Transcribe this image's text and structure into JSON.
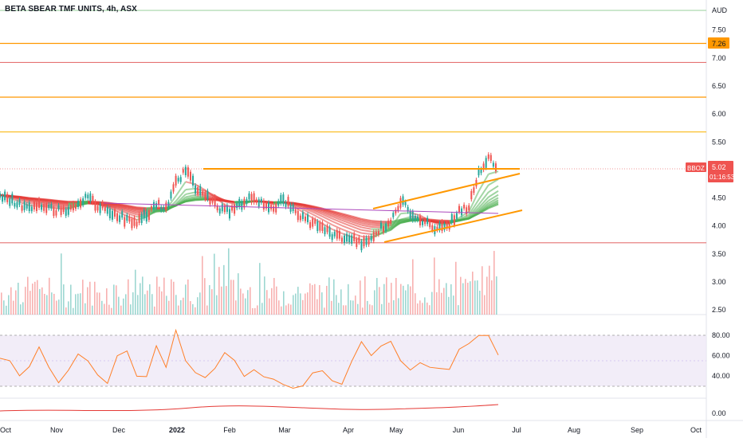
{
  "header": {
    "title": "BETA SBEAR TMF UNITS, 4h, ASX"
  },
  "price_scale": {
    "currency": "AUD",
    "ticks": [
      "7.50",
      "7.00",
      "6.50",
      "6.00",
      "5.50",
      "4.50",
      "4.00",
      "3.50",
      "3.00",
      "2.50"
    ],
    "tick_values": [
      7.5,
      7.0,
      6.5,
      6.0,
      5.5,
      4.5,
      4.0,
      3.5,
      3.0,
      2.5
    ]
  },
  "badges": {
    "level_label": "7.26",
    "level_value": 7.26,
    "symbol": "BBOZ",
    "last_price": "5.02",
    "last_value": 5.02,
    "countdown": "01:16:53"
  },
  "rsi_scale": {
    "ticks": [
      "80.00",
      "60.00",
      "40.00"
    ],
    "tick_values": [
      80,
      60,
      40
    ]
  },
  "osc_scale": {
    "ticks": [
      "0.00"
    ]
  },
  "time_axis": {
    "labels": [
      "Oct",
      "Nov",
      "Dec",
      "2022",
      "Feb",
      "Mar",
      "Apr",
      "May",
      "Jun",
      "Jul",
      "Aug",
      "Sep",
      "Oct"
    ],
    "bold": [
      false,
      false,
      false,
      true,
      false,
      false,
      false,
      false,
      false,
      false,
      false,
      false,
      false
    ]
  },
  "colors": {
    "up": "#26a69a",
    "down": "#ef5350",
    "ribbon_up": "#4caf50",
    "ribbon_down": "#e53935",
    "orange": "#ff9800",
    "red_line": "#e57373",
    "green_line": "#a5d6a7",
    "yellow_line": "#fbc02d",
    "rsi_line": "#ff7f27",
    "rsi_band": "#7e57c2",
    "purple_ma": "#ab47bc"
  },
  "chart_data": {
    "type": "line",
    "series": [
      {
        "values": [
          4.55,
          4.45,
          4.38,
          4.3,
          4.35,
          4.32,
          4.28,
          4.3,
          4.42,
          4.5,
          4.35,
          4.28,
          4.2,
          4.1,
          4.05,
          4.2,
          4.4,
          4.3,
          4.75,
          5.02,
          4.7,
          4.55,
          4.4,
          4.25,
          4.3,
          4.45,
          4.5,
          4.4,
          4.35,
          4.45,
          4.3,
          4.15,
          4.05,
          3.95,
          3.85,
          3.8,
          3.75,
          3.7,
          3.8,
          3.95,
          4.05,
          4.45,
          4.25,
          4.15,
          4.0,
          3.95,
          4.05,
          4.25,
          4.35,
          4.95,
          5.2,
          5.02
        ]
      }
    ],
    "levels": [
      7.85,
      7.26,
      6.92,
      6.3,
      5.68,
      5.02,
      3.7
    ],
    "rsi": [
      58,
      55,
      40,
      48,
      70,
      50,
      35,
      46,
      60,
      54,
      40,
      34,
      58,
      64,
      40,
      40,
      70,
      50,
      86,
      55,
      43,
      40,
      48,
      64,
      56,
      40,
      46,
      40,
      35,
      30,
      28,
      30,
      42,
      46,
      35,
      32,
      56,
      74,
      60,
      70,
      74,
      56,
      46,
      54,
      50,
      46,
      48,
      66,
      70,
      80,
      78,
      62
    ]
  }
}
